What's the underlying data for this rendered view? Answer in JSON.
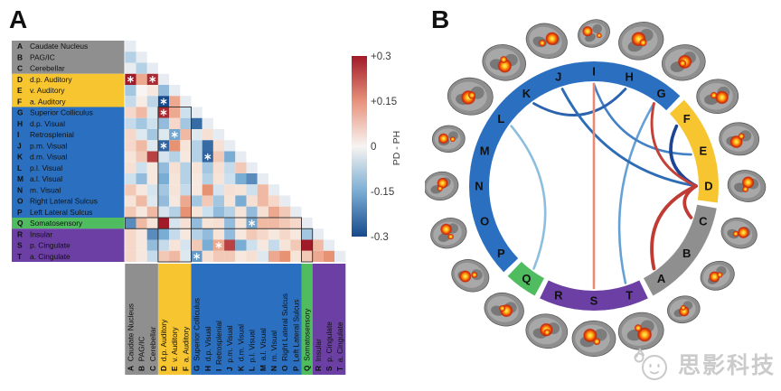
{
  "figure": {
    "panelA_label": "A",
    "panelB_label": "B"
  },
  "watermark": {
    "text": "思影科技",
    "logo_icon": "mascot-logo"
  },
  "regions": [
    {
      "letter": "A",
      "name": "Caudate Nucleus",
      "group": "gray"
    },
    {
      "letter": "B",
      "name": "PAG/IC",
      "group": "gray"
    },
    {
      "letter": "C",
      "name": "Cerebellar",
      "group": "gray"
    },
    {
      "letter": "D",
      "name": "d.p. Auditory",
      "group": "yellow"
    },
    {
      "letter": "E",
      "name": "v. Auditory",
      "group": "yellow"
    },
    {
      "letter": "F",
      "name": "a. Auditory",
      "group": "yellow"
    },
    {
      "letter": "G",
      "name": "Superior Colliculus",
      "group": "blue"
    },
    {
      "letter": "H",
      "name": "d.p. Visual",
      "group": "blue"
    },
    {
      "letter": "I",
      "name": "Retrosplenial",
      "group": "blue"
    },
    {
      "letter": "J",
      "name": "p.m. Visual",
      "group": "blue"
    },
    {
      "letter": "K",
      "name": "d.m. Visual",
      "group": "blue"
    },
    {
      "letter": "L",
      "name": "p.l. Visual",
      "group": "blue"
    },
    {
      "letter": "M",
      "name": "a.l. Visual",
      "group": "blue"
    },
    {
      "letter": "N",
      "name": "m. Visual",
      "group": "blue"
    },
    {
      "letter": "O",
      "name": "Right Lateral Sulcus",
      "group": "blue"
    },
    {
      "letter": "P",
      "name": "Left Lateral Sulcus",
      "group": "blue"
    },
    {
      "letter": "Q",
      "name": "Somatosensory",
      "group": "green"
    },
    {
      "letter": "R",
      "name": "Insular",
      "group": "purple"
    },
    {
      "letter": "S",
      "name": "p. Cingulate",
      "group": "purple"
    },
    {
      "letter": "T",
      "name": "a. Cingulate",
      "group": "purple"
    }
  ],
  "group_colors": {
    "gray": "#8f8f8f",
    "yellow": "#f7c52f",
    "blue": "#2b70c0",
    "green": "#4fbc5f",
    "purple": "#6b3fa3"
  },
  "colorbar": {
    "label": "PD - PH",
    "ticks": [
      "+0.3",
      "+0.15",
      "0",
      "-0.15",
      "-0.3"
    ],
    "top_color": "#a11a28",
    "mid_color": "#f7f4f1",
    "bottom_color": "#164a8c"
  },
  "chart_data": [
    {
      "type": "heatmap",
      "title": "Lower-triangular region-pair difference matrix (PD - PH)",
      "value_range": [
        -0.3,
        0.3
      ],
      "row_labels": [
        "A",
        "B",
        "C",
        "D",
        "E",
        "F",
        "G",
        "H",
        "I",
        "J",
        "K",
        "L",
        "M",
        "N",
        "O",
        "P",
        "Q",
        "R",
        "S",
        "T"
      ],
      "col_labels": [
        "A",
        "B",
        "C",
        "D",
        "E",
        "F",
        "G",
        "H",
        "I",
        "J",
        "K",
        "L",
        "M",
        "N",
        "O",
        "P",
        "Q",
        "R",
        "S"
      ],
      "rows": {
        "A": [],
        "B": [
          -0.08
        ],
        "C": [
          -0.02,
          -0.08
        ],
        "D": [
          0.3,
          0.12,
          0.28
        ],
        "E": [
          -0.1,
          0.0,
          0.03,
          -0.12
        ],
        "F": [
          -0.06,
          0.02,
          -0.07,
          -0.3,
          0.12
        ],
        "G": [
          0.06,
          0.1,
          -0.03,
          0.28,
          0.12,
          -0.05
        ],
        "H": [
          -0.06,
          -0.1,
          -0.05,
          -0.12,
          0.06,
          -0.1,
          -0.25
        ],
        "I": [
          0.06,
          -0.03,
          -0.1,
          -0.03,
          -0.16,
          0.1,
          -0.03,
          0.05
        ],
        "J": [
          0.06,
          0.1,
          -0.03,
          -0.26,
          0.15,
          0.04,
          -0.08,
          -0.25,
          0.05
        ],
        "K": [
          0.04,
          0.08,
          0.25,
          -0.04,
          -0.08,
          0.03,
          -0.08,
          -0.26,
          0.08,
          -0.15
        ],
        "L": [
          0.05,
          -0.05,
          0.03,
          -0.12,
          0.05,
          -0.08,
          0.04,
          -0.1,
          0.05,
          -0.06,
          0.08
        ],
        "M": [
          -0.05,
          -0.12,
          0.03,
          -0.15,
          0.04,
          -0.08,
          0.03,
          -0.08,
          0.04,
          -0.05,
          -0.15,
          -0.2
        ],
        "N": [
          0.08,
          0.03,
          -0.04,
          -0.1,
          0.04,
          -0.06,
          0.03,
          0.15,
          -0.04,
          0.05,
          0.04,
          -0.05,
          0.1
        ],
        "O": [
          0.04,
          0.1,
          -0.03,
          -0.12,
          0.03,
          0.12,
          -0.1,
          0.08,
          -0.1,
          0.04,
          -0.15,
          0.05,
          0.1,
          0.06
        ],
        "P": [
          0.08,
          0.03,
          0.1,
          -0.04,
          -0.08,
          0.15,
          0.04,
          -0.05,
          -0.12,
          -0.08,
          0.04,
          -0.12,
          0.05,
          0.12,
          0.08
        ],
        "Q": [
          -0.2,
          0.1,
          0.04,
          0.3,
          -0.04,
          0.05,
          -0.12,
          0.04,
          0.05,
          -0.12,
          0.04,
          -0.16,
          0.1,
          0.1,
          0.08,
          0.06
        ],
        "R": [
          0.06,
          0.03,
          -0.2,
          -0.15,
          -0.06,
          0.03,
          -0.08,
          -0.12,
          0.04,
          -0.12,
          0.03,
          0.08,
          0.06,
          0.03,
          0.06,
          0.03,
          -0.1
        ],
        "S": [
          0.06,
          0.03,
          -0.12,
          -0.06,
          0.04,
          -0.04,
          0.08,
          -0.15,
          0.12,
          0.25,
          -0.15,
          -0.05,
          0.03,
          -0.06,
          0.04,
          0.08,
          0.3,
          0.1
        ],
        "T": [
          0.06,
          0.03,
          -0.06,
          0.08,
          0.1,
          -0.03,
          -0.18,
          0.05,
          0.08,
          0.08,
          0.03,
          0.05,
          -0.03,
          0.12,
          0.15,
          0.04,
          0.08,
          0.12,
          0.15
        ]
      },
      "significant_pairs": [
        [
          "D",
          "A"
        ],
        [
          "D",
          "C"
        ],
        [
          "F",
          "D"
        ],
        [
          "G",
          "D"
        ],
        [
          "I",
          "E"
        ],
        [
          "J",
          "D"
        ],
        [
          "K",
          "H"
        ],
        [
          "Q",
          "L"
        ],
        [
          "S",
          "I"
        ],
        [
          "T",
          "G"
        ]
      ]
    },
    {
      "type": "chord",
      "title": "Significant region-pair differences",
      "node_order_clockwise_from_top": [
        "I",
        "H",
        "G",
        "F",
        "E",
        "D",
        "C",
        "B",
        "A",
        "T",
        "S",
        "R",
        "Q",
        "P",
        "O",
        "N",
        "M",
        "L",
        "K",
        "J"
      ],
      "links": [
        {
          "source": "G",
          "target": "T",
          "value": -0.18,
          "color": "#66a1d5",
          "width": 2.6
        },
        {
          "source": "L",
          "target": "Q",
          "value": -0.16,
          "color": "#8cbede",
          "width": 2.6
        },
        {
          "source": "I",
          "target": "E",
          "value": -0.16,
          "color": "#4381c4",
          "width": 2.6
        },
        {
          "source": "K",
          "target": "H",
          "value": -0.26,
          "color": "#2b63ae",
          "width": 2.9
        },
        {
          "source": "J",
          "target": "D",
          "value": -0.26,
          "color": "#2e6cb5",
          "width": 2.9
        },
        {
          "source": "F",
          "target": "D",
          "value": -0.3,
          "color": "#1d4596",
          "width": 3.6
        },
        {
          "source": "I",
          "target": "S",
          "value": 0.12,
          "color": "#ea8a72",
          "width": 2.6
        },
        {
          "source": "G",
          "target": "D",
          "value": 0.28,
          "color": "#c2423a",
          "width": 2.9
        },
        {
          "source": "D",
          "target": "C",
          "value": 0.28,
          "color": "#bf3b34",
          "width": 3.8
        },
        {
          "source": "D",
          "target": "A",
          "value": 0.3,
          "color": "#bf3b34",
          "width": 3.8
        }
      ],
      "brain_thumbnail_angles": [
        0,
        18,
        36,
        54,
        72,
        90,
        108,
        126,
        144,
        162,
        180,
        198,
        216,
        234,
        252,
        270,
        288,
        306,
        324,
        342
      ]
    }
  ]
}
